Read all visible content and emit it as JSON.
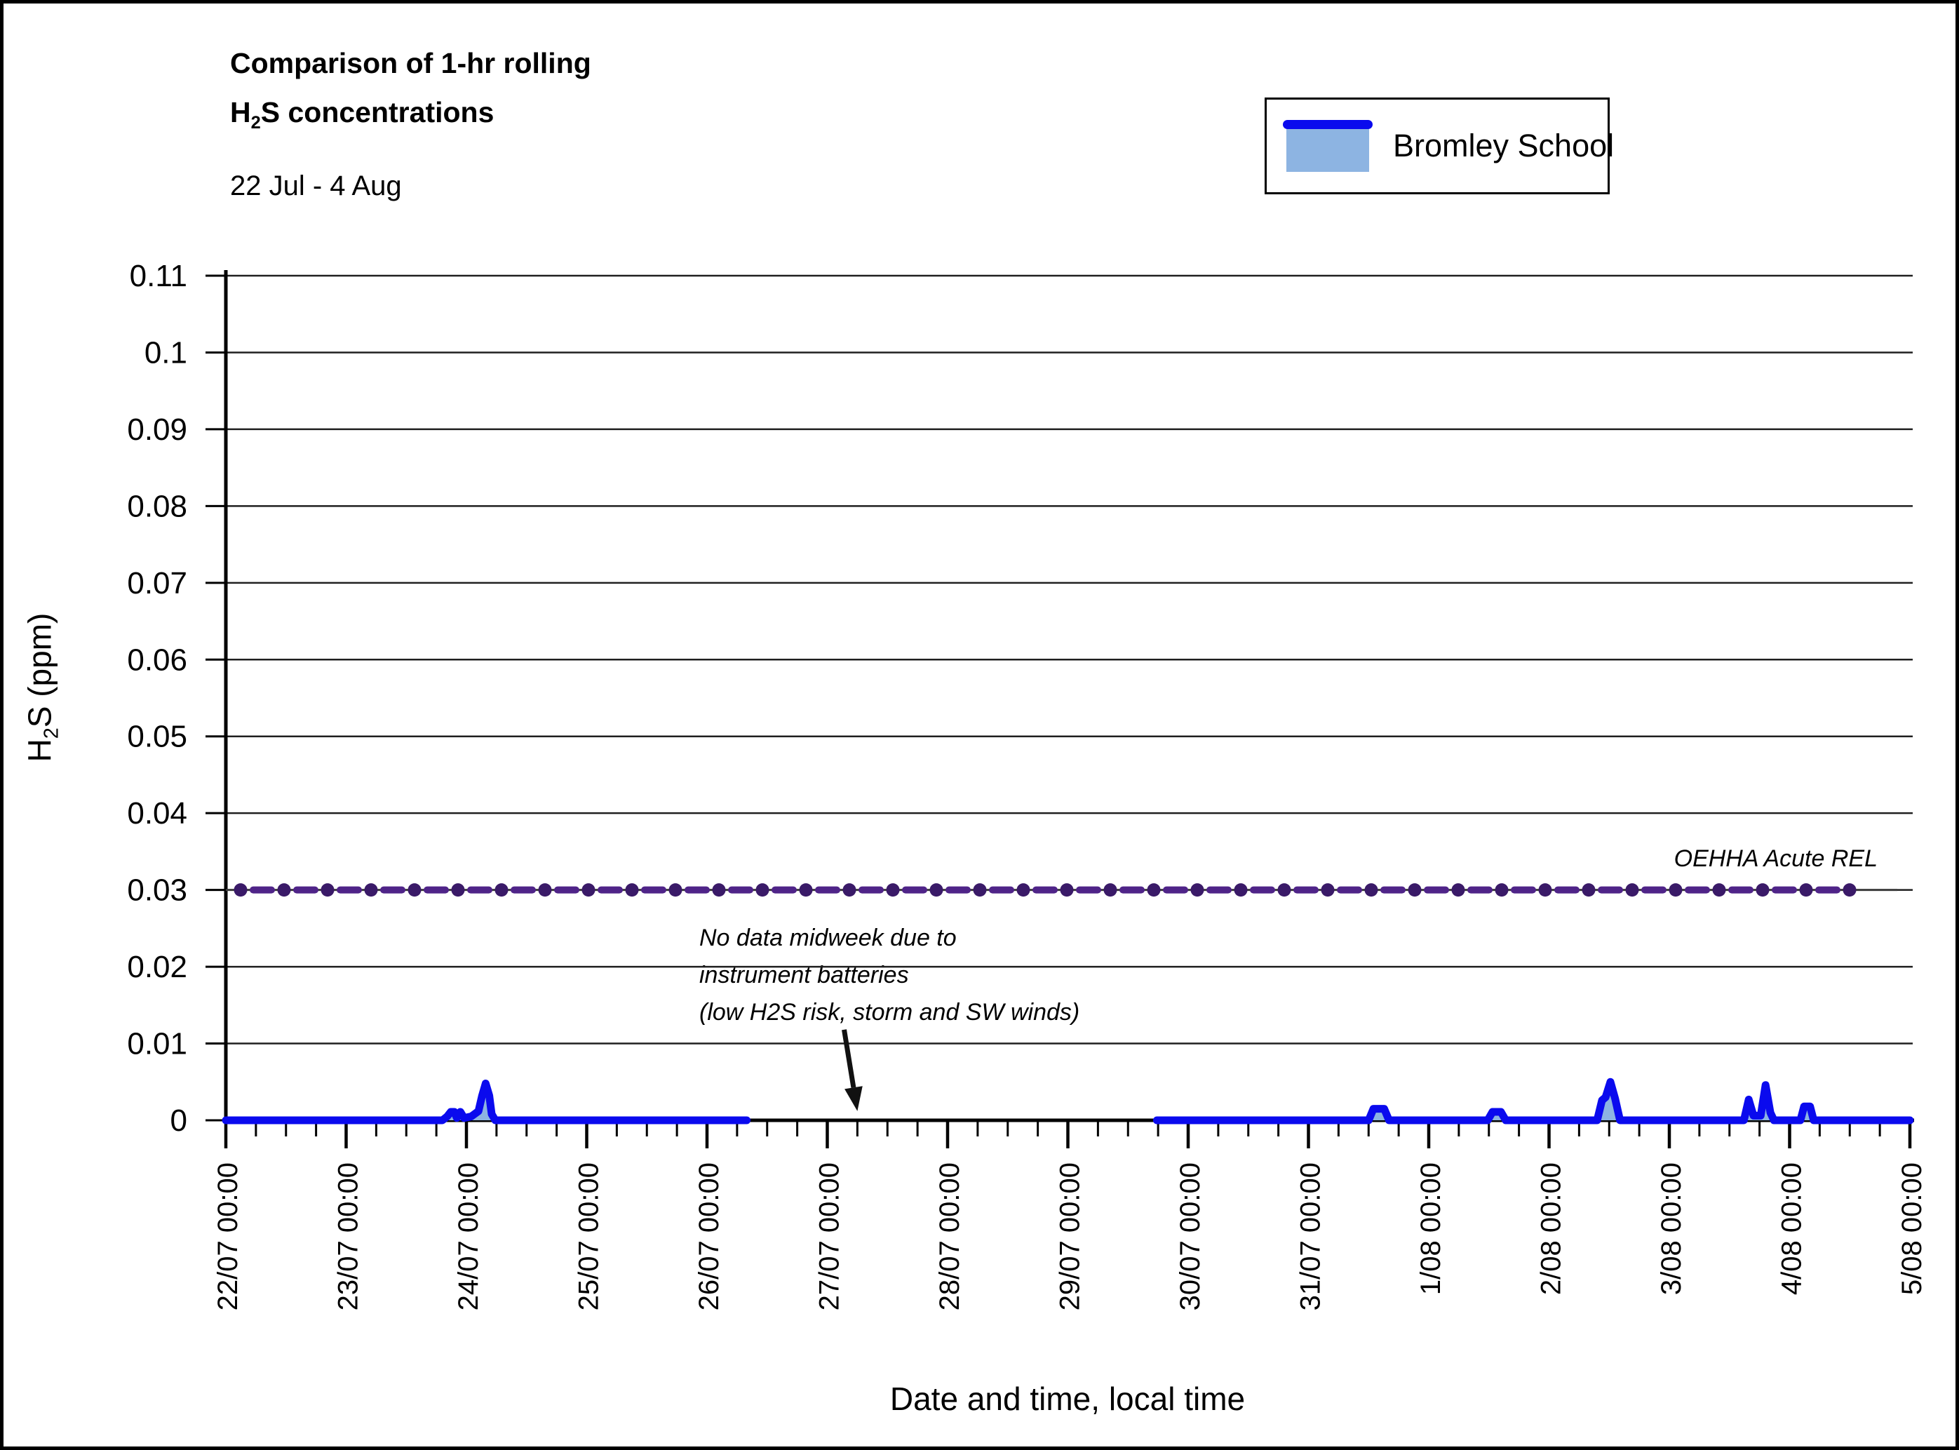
{
  "header": {
    "title_line1": "Comparison of 1-hr rolling",
    "title_line2_prefix": "H",
    "title_line2_sub": "2",
    "title_line2_suffix": "S concentrations",
    "subtitle": "22 Jul - 4 Aug"
  },
  "legend": {
    "label": "Bromley School",
    "line_color": "#0A0AEE",
    "fill_color": "#8DB4E2"
  },
  "colors": {
    "series_line": "#0A0AEE",
    "series_fill": "#8DB4E2",
    "rel_marker": "#3A1A68",
    "rel_dash": "#4F2488",
    "rel_thin_line": "#3D3D3D",
    "grid": "#1F1F1F",
    "axis": "#000000",
    "annotation_arrow": "#111111"
  },
  "chart_data": {
    "type": "area",
    "title": "Comparison of 1-hr rolling H2S concentrations",
    "subtitle": "22 Jul - 4 Aug",
    "xlabel": "Date and time, local time",
    "ylabel_prefix": "H",
    "ylabel_sub": "2",
    "ylabel_suffix": "S (ppm)",
    "x_unit": "days since 22/07 00:00, local time",
    "xlim": [
      0,
      14
    ],
    "ylim": [
      0,
      0.11
    ],
    "grid": "horizontal only",
    "y_tick_step": 0.01,
    "y_tick_labels": [
      "0",
      "0.01",
      "0.02",
      "0.03",
      "0.04",
      "0.05",
      "0.06",
      "0.07",
      "0.08",
      "0.09",
      "0.1",
      "0.11"
    ],
    "x_tick_labels": [
      "22/07 00:00",
      "23/07 00:00",
      "24/07 00:00",
      "25/07 00:00",
      "26/07 00:00",
      "27/07 00:00",
      "28/07 00:00",
      "29/07 00:00",
      "30/07 00:00",
      "31/07 00:00",
      "1/08 00:00",
      "2/08 00:00",
      "3/08 00:00",
      "4/08 00:00",
      "5/08 00:00"
    ],
    "x_minor_tick_interval_days": 0.25,
    "reference_line": {
      "label": "OEHHA Acute REL",
      "value": 0.03
    },
    "series": [
      {
        "name": "Bromley School",
        "note": "two continuous segments separated by a no-data gap (approx 26/07 08:00 to 29/07 18:00)",
        "segments": [
          [
            [
              0,
              0
            ],
            [
              1.8,
              0
            ],
            [
              1.84,
              0.0005
            ],
            [
              1.87,
              0.0011
            ],
            [
              1.9,
              0.0011
            ],
            [
              1.92,
              0.0003
            ],
            [
              1.95,
              0.0011
            ],
            [
              1.98,
              0.0003
            ],
            [
              2.04,
              0.0005
            ],
            [
              2.1,
              0.0012
            ],
            [
              2.13,
              0.0032
            ],
            [
              2.16,
              0.0048
            ],
            [
              2.19,
              0.0032
            ],
            [
              2.21,
              0.0008
            ],
            [
              2.24,
              0
            ],
            [
              4.33,
              0
            ]
          ],
          [
            [
              7.74,
              0
            ],
            [
              9.5,
              0
            ],
            [
              9.54,
              0.0015
            ],
            [
              9.63,
              0.0015
            ],
            [
              9.67,
              0
            ],
            [
              10.49,
              0
            ],
            [
              10.53,
              0.0011
            ],
            [
              10.6,
              0.0011
            ],
            [
              10.64,
              0
            ],
            [
              11.4,
              0
            ],
            [
              11.44,
              0.0026
            ],
            [
              11.47,
              0.003
            ],
            [
              11.51,
              0.005
            ],
            [
              11.55,
              0.0028
            ],
            [
              11.59,
              0
            ],
            [
              12.62,
              0
            ],
            [
              12.66,
              0.0027
            ],
            [
              12.7,
              0.0006
            ],
            [
              12.76,
              0.0006
            ],
            [
              12.8,
              0.0046
            ],
            [
              12.84,
              0.001
            ],
            [
              12.87,
              0
            ],
            [
              13.09,
              0
            ],
            [
              13.12,
              0.0018
            ],
            [
              13.17,
              0.0018
            ],
            [
              13.2,
              0
            ],
            [
              14,
              0
            ]
          ]
        ]
      }
    ],
    "annotation": {
      "line1": "No data midweek due to",
      "line2": "instrument batteries",
      "line3": "(low H2S risk, storm and SW winds)",
      "arrow": {
        "start_day": 5.14,
        "start_value": 0.0118,
        "tip_day": 5.25,
        "tip_value": 0.0012
      }
    }
  }
}
